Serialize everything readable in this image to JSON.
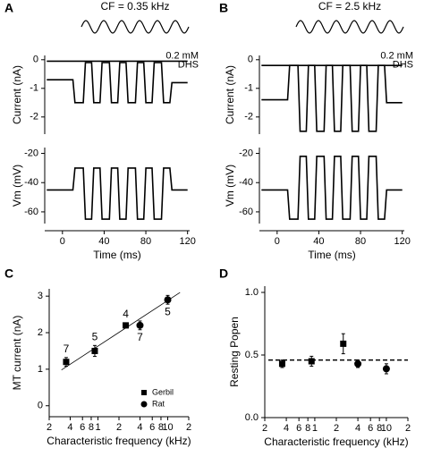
{
  "chart_data": [
    {
      "type": "line",
      "panel": "A",
      "title": "CF = 0.35 kHz",
      "ylabel": "Current (nA)",
      "xlim": [
        -17,
        122
      ],
      "ylim": [
        -2.6,
        0.15
      ],
      "yticks": [
        0,
        -1,
        -2
      ],
      "x": [
        -15,
        10,
        12,
        20,
        22,
        28,
        30,
        36,
        38,
        45,
        47,
        53,
        55,
        61,
        63,
        70,
        72,
        78,
        80,
        86,
        88,
        95,
        97,
        103,
        105,
        120
      ],
      "series": [
        {
          "color": "#000000",
          "values": [
            -0.7,
            -0.7,
            -1.5,
            -1.5,
            -0.1,
            -0.1,
            -1.5,
            -1.5,
            -0.1,
            -0.1,
            -1.5,
            -1.5,
            -0.1,
            -0.1,
            -1.5,
            -1.5,
            -0.1,
            -0.1,
            -1.5,
            -1.5,
            -0.1,
            -0.1,
            -1.5,
            -1.5,
            -0.8,
            -0.8
          ]
        },
        {
          "color": "#000000",
          "x": [
            -15,
            120
          ],
          "values": [
            -0.05,
            -0.05
          ]
        }
      ],
      "annotation": [
        "0.2 mM",
        "DHS"
      ]
    },
    {
      "type": "line",
      "ylabel": "Vm (mV)",
      "xlabel": "Time (ms)",
      "xlim": [
        -17,
        122
      ],
      "ylim": [
        -68,
        -16
      ],
      "yticks": [
        -20,
        -40,
        -60
      ],
      "xticks": [
        0,
        40,
        80,
        120
      ],
      "x": [
        -15,
        10,
        12,
        20,
        22,
        28,
        30,
        36,
        38,
        45,
        47,
        53,
        55,
        61,
        63,
        70,
        72,
        78,
        80,
        86,
        88,
        95,
        97,
        103,
        105,
        120
      ],
      "series": [
        {
          "color": "#000000",
          "values": [
            -45,
            -45,
            -30,
            -30,
            -65,
            -65,
            -30,
            -30,
            -65,
            -65,
            -30,
            -30,
            -65,
            -65,
            -30,
            -30,
            -65,
            -65,
            -30,
            -30,
            -65,
            -65,
            -30,
            -30,
            -45,
            -45
          ]
        }
      ]
    },
    {
      "type": "line",
      "panel": "B",
      "title": "CF = 2.5 kHz",
      "ylabel": "Current (nA)",
      "xlim": [
        -17,
        122
      ],
      "ylim": [
        -2.6,
        0.15
      ],
      "yticks": [
        0,
        -1,
        -2
      ],
      "x": [
        -15,
        10,
        12,
        20,
        22,
        28,
        30,
        36,
        38,
        45,
        47,
        53,
        55,
        61,
        63,
        70,
        72,
        78,
        80,
        86,
        88,
        95,
        97,
        103,
        105,
        120
      ],
      "series": [
        {
          "color": "#000000",
          "values": [
            -1.4,
            -1.4,
            -0.2,
            -0.2,
            -2.5,
            -2.5,
            -0.2,
            -0.2,
            -2.5,
            -2.5,
            -0.2,
            -0.2,
            -2.5,
            -2.5,
            -0.2,
            -0.2,
            -2.5,
            -2.5,
            -0.2,
            -0.2,
            -2.5,
            -2.5,
            -0.2,
            -0.2,
            -1.5,
            -1.5
          ]
        },
        {
          "color": "#000000",
          "x": [
            -15,
            120
          ],
          "values": [
            -0.2,
            -0.2
          ]
        }
      ],
      "annotation": [
        "0.2 mM",
        "DHS"
      ]
    },
    {
      "type": "line",
      "ylabel": "Vm (mV)",
      "xlabel": "Time (ms)",
      "xlim": [
        -17,
        122
      ],
      "ylim": [
        -68,
        -16
      ],
      "yticks": [
        -20,
        -40,
        -60
      ],
      "xticks": [
        0,
        40,
        80,
        120
      ],
      "x": [
        -15,
        10,
        12,
        20,
        22,
        28,
        30,
        36,
        38,
        45,
        47,
        53,
        55,
        61,
        63,
        70,
        72,
        78,
        80,
        86,
        88,
        95,
        97,
        103,
        105,
        120
      ],
      "series": [
        {
          "color": "#000000",
          "values": [
            -45,
            -45,
            -65,
            -65,
            -22,
            -22,
            -65,
            -65,
            -22,
            -22,
            -65,
            -65,
            -22,
            -22,
            -65,
            -65,
            -22,
            -22,
            -65,
            -65,
            -22,
            -22,
            -65,
            -65,
            -45,
            -45
          ]
        }
      ]
    },
    {
      "type": "scatter",
      "panel": "C",
      "xlabel": "Characteristic frequency (kHz)",
      "ylabel": "MT current (nA)",
      "log_x": true,
      "xlim": [
        0.2,
        20
      ],
      "xticks": [
        {
          "value": 0.2,
          "label": "2"
        },
        {
          "value": 0.4,
          "label": "4"
        },
        {
          "value": 0.6,
          "label": "6"
        },
        {
          "value": 0.8,
          "label": "8"
        },
        1,
        2,
        4,
        6,
        8,
        10,
        {
          "value": 20,
          "label": "2"
        }
      ],
      "ylim": [
        -0.3,
        3.2
      ],
      "yticks": [
        0,
        1,
        2,
        3
      ],
      "series": [
        {
          "name": "Gerbil",
          "marker": "square",
          "color": "#000000",
          "x": [
            0.35,
            0.9,
            2.5
          ],
          "values": [
            1.2,
            1.5,
            2.2
          ],
          "errors": [
            0.12,
            0.15,
            0.07
          ],
          "n": [
            7,
            5,
            4
          ]
        },
        {
          "name": "Rat",
          "marker": "circle",
          "color": "#000000",
          "x": [
            4,
            10
          ],
          "values": [
            2.2,
            2.9
          ],
          "errors": [
            0.12,
            0.12
          ],
          "n": [
            7,
            5
          ]
        }
      ],
      "fit": {
        "x": [
          0.3,
          15
        ],
        "values": [
          0.98,
          3.1
        ]
      },
      "legend": "lower right"
    },
    {
      "type": "scatter",
      "panel": "D",
      "xlabel": "Characteristic frequency (kHz)",
      "ylabel": "Resting Popen",
      "log_x": true,
      "xlim": [
        0.2,
        20
      ],
      "xticks": [
        {
          "value": 0.2,
          "label": "2"
        },
        {
          "value": 0.4,
          "label": "4"
        },
        {
          "value": 0.6,
          "label": "6"
        },
        {
          "value": 0.8,
          "label": "8"
        },
        1,
        2,
        4,
        6,
        8,
        10,
        {
          "value": 20,
          "label": "2"
        }
      ],
      "ylim": [
        0,
        1.05
      ],
      "yticks": [
        {
          "value": 0,
          "label": "0.0"
        },
        0.5,
        {
          "value": 1,
          "label": "1.0"
        }
      ],
      "series": [
        {
          "marker": "square",
          "color": "#000000",
          "x": [
            0.35,
            0.9,
            2.5
          ],
          "values": [
            0.43,
            0.45,
            0.59
          ],
          "errors": [
            0.03,
            0.04,
            0.08
          ]
        },
        {
          "marker": "circle",
          "color": "#000000",
          "x": [
            4,
            10
          ],
          "values": [
            0.43,
            0.39
          ],
          "errors": [
            0.03,
            0.04
          ]
        }
      ],
      "reference_line": 0.46
    }
  ]
}
